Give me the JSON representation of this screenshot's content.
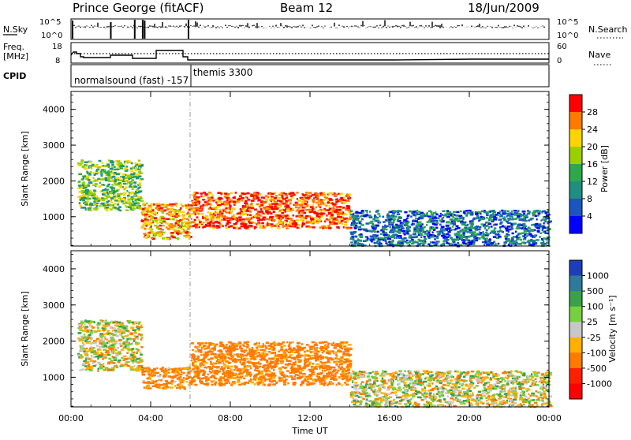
{
  "header": {
    "title": "Prince George (fitACF)",
    "beam": "Beam 12",
    "date": "18/Jun/2009"
  },
  "panels": {
    "noise": {
      "left_label": "N.Sky",
      "left_ticks": [
        "10^5",
        "10^0"
      ],
      "right_ticks": [
        "10^5",
        "10^0"
      ],
      "right_label": "N.Search"
    },
    "freq": {
      "left_label_1": "Freq.",
      "left_label_2": "[MHz]",
      "left_ticks": [
        "18",
        "8"
      ],
      "right_ticks": [
        "60",
        "0"
      ],
      "right_label": "Nave"
    },
    "cpid": {
      "label": "CPID",
      "mode_1": "normalsound (fast) -157",
      "mode_2": "themis 3300"
    }
  },
  "power_panel": {
    "ylabel": "Slant Range [km]",
    "yticks": [
      "1000",
      "2000",
      "3000",
      "4000"
    ],
    "colorbar_label": "Power [dB]",
    "colorbar_ticks": [
      "28",
      "24",
      "20",
      "16",
      "12",
      "8",
      "4"
    ],
    "colorbar_colors": [
      "#ff0000",
      "#ff7a00",
      "#ffd400",
      "#9bd000",
      "#2ea84a",
      "#1f8f80",
      "#1a55c0",
      "#0000ff"
    ]
  },
  "velocity_panel": {
    "ylabel": "Slant Range [km]",
    "yticks": [
      "1000",
      "2000",
      "3000",
      "4000"
    ],
    "colorbar_label": "Velocity [m s⁻¹]",
    "colorbar_ticks": [
      "1000",
      "500",
      "100",
      "25",
      "-25",
      "-100",
      "-500",
      "-1000"
    ],
    "colorbar_colors": [
      "#1c3fb8",
      "#2f7a9a",
      "#3aa04a",
      "#77d040",
      "#c8c8c8",
      "#ffb000",
      "#ff7a00",
      "#ff2000",
      "#ff0000"
    ]
  },
  "xaxis": {
    "label": "Time UT",
    "ticks": [
      "00:00",
      "04:00",
      "08:00",
      "12:00",
      "16:00",
      "20:00",
      "00:00"
    ]
  },
  "chart_data": [
    {
      "type": "heatmap",
      "title": "Prince George (fitACF)",
      "subtitle": "Beam 12",
      "xlabel": "Time UT",
      "ylabel": "Slant Range [km]",
      "x_range_hours": [
        0,
        24
      ],
      "y_range_km": [
        180,
        4500
      ],
      "colorbar": {
        "label": "Power [dB]",
        "range": [
          0,
          30
        ],
        "ticks": [
          4,
          8,
          12,
          16,
          20,
          24,
          28
        ]
      },
      "features": [
        {
          "time": [
            0.3,
            3.5
          ],
          "range_km": [
            1200,
            2600
          ],
          "power_db": 14
        },
        {
          "time": [
            3.5,
            6.0
          ],
          "range_km": [
            400,
            1400
          ],
          "power_db": 22
        },
        {
          "time": [
            6.0,
            14.0
          ],
          "range_km": [
            700,
            1700
          ],
          "power_db": 26
        },
        {
          "time": [
            14.0,
            24.0
          ],
          "range_km": [
            200,
            1200
          ],
          "power_db": 6
        }
      ]
    },
    {
      "type": "heatmap",
      "title": "",
      "xlabel": "Time UT",
      "ylabel": "Slant Range [km]",
      "x_range_hours": [
        0,
        24
      ],
      "y_range_km": [
        180,
        4500
      ],
      "colorbar": {
        "label": "Velocity [m s⁻¹]",
        "ticks": [
          1000,
          500,
          100,
          25,
          -25,
          -100,
          -500,
          -1000
        ]
      },
      "features": [
        {
          "time": [
            0.3,
            3.5
          ],
          "range_km": [
            1200,
            2600
          ],
          "velocity": 0
        },
        {
          "time": [
            3.5,
            6.0
          ],
          "range_km": [
            700,
            1300
          ],
          "velocity": -150
        },
        {
          "time": [
            6.0,
            14.0
          ],
          "range_km": [
            800,
            2000
          ],
          "velocity": -200
        },
        {
          "time": [
            14.0,
            24.0
          ],
          "range_km": [
            200,
            1200
          ],
          "velocity": 0
        }
      ]
    }
  ]
}
